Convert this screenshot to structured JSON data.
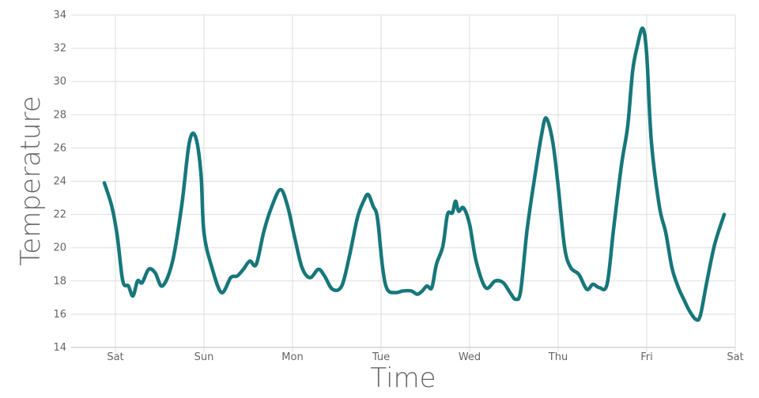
{
  "chart_data": {
    "type": "line",
    "title": "",
    "xlabel": "Time",
    "ylabel": "Temperature",
    "ylim": [
      14,
      34
    ],
    "y_ticks": [
      14,
      16,
      18,
      20,
      22,
      24,
      26,
      28,
      30,
      32,
      34
    ],
    "x_ticks": [
      "Sat",
      "Sun",
      "Mon",
      "Tue",
      "Wed",
      "Thu",
      "Fri",
      "Sat"
    ],
    "grid": true,
    "line_color": "#17777a",
    "series": [
      {
        "x": [
          "Fri 21:00",
          "Fri 23:00",
          "Sat 00:30",
          "Sat 02:00",
          "Sat 03:30",
          "Sat 04:45",
          "Sat 06:00",
          "Sat 07:15",
          "Sat 09:00",
          "Sat 10:45",
          "Sat 12:45",
          "Sat 15:30",
          "Sat 18:00",
          "Sat 20:00",
          "Sat 21:40",
          "Sat 23:10",
          "Sun 00:00",
          "Sun 02:10",
          "Sun 04:45",
          "Sun 07:15",
          "Sun 09:00",
          "Sun 10:40",
          "Sun 12:25",
          "Sun 14:10",
          "Sun 16:15",
          "Sun 18:25",
          "Sun 20:45",
          "Sun 22:40",
          "Mon 00:30",
          "Mon 02:35",
          "Mon 04:45",
          "Mon 07:00",
          "Mon 08:40",
          "Mon 10:50",
          "Mon 13:20",
          "Mon 15:25",
          "Mon 17:35",
          "Mon 19:15",
          "Mon 20:30",
          "Mon 21:50",
          "Mon 23:00",
          "Tue 00:25",
          "Tue 01:40",
          "Tue 03:50",
          "Tue 06:00",
          "Tue 08:10",
          "Tue 09:50",
          "Tue 11:10",
          "Tue 12:25",
          "Tue 13:45",
          "Tue 15:00",
          "Tue 16:45",
          "Tue 18:00",
          "Tue 19:20",
          "Tue 20:10",
          "Tue 21:00",
          "Tue 22:20",
          "Wed 00:00",
          "Wed 01:45",
          "Wed 04:20",
          "Wed 06:55",
          "Wed 09:05",
          "Wed 11:15",
          "Wed 12:30",
          "Wed 13:50",
          "Wed 15:35",
          "Wed 17:45",
          "Wed 19:30",
          "Wed 20:45",
          "Wed 22:30",
          "Thu 00:00",
          "Thu 01:45",
          "Thu 03:25",
          "Thu 05:35",
          "Thu 07:45",
          "Thu 09:25",
          "Thu 11:10",
          "Thu 13:15",
          "Thu 15:00",
          "Thu 17:10",
          "Thu 18:50",
          "Thu 20:10",
          "Thu 21:25",
          "Thu 22:55",
          "Fri 00:00",
          "Fri 01:15",
          "Fri 03:25",
          "Fri 05:10",
          "Fri 06:50",
          "Fri 08:35",
          "Fri 10:15",
          "Fri 11:35",
          "Fri 13:15",
          "Fri 14:30",
          "Fri 16:15",
          "Fri 18:25",
          "Fri 21:00"
        ],
        "y": [
          23.9,
          22.5,
          20.7,
          18.0,
          17.7,
          17.1,
          18.0,
          17.9,
          18.7,
          18.5,
          17.7,
          19.2,
          22.6,
          26.3,
          26.7,
          24.5,
          20.9,
          18.8,
          17.3,
          18.2,
          18.3,
          18.7,
          19.2,
          19.0,
          21.0,
          22.5,
          23.5,
          22.5,
          20.7,
          18.8,
          18.2,
          18.7,
          18.3,
          17.5,
          17.7,
          19.5,
          21.8,
          22.8,
          23.2,
          22.5,
          21.8,
          18.8,
          17.5,
          17.3,
          17.4,
          17.4,
          17.2,
          17.4,
          17.7,
          17.6,
          19.0,
          20.1,
          22.0,
          22.1,
          22.8,
          22.2,
          22.4,
          21.4,
          19.2,
          17.6,
          18.0,
          17.9,
          17.2,
          16.9,
          17.4,
          21.1,
          24.4,
          26.8,
          27.8,
          26.4,
          23.7,
          20.0,
          18.8,
          18.4,
          17.5,
          17.8,
          17.6,
          17.8,
          21.1,
          25.0,
          27.3,
          30.6,
          32.1,
          33.2,
          31.6,
          26.4,
          22.5,
          20.9,
          18.8,
          17.6,
          16.8,
          16.2,
          15.7,
          15.9,
          17.9,
          20.2,
          22.0
        ]
      }
    ]
  }
}
